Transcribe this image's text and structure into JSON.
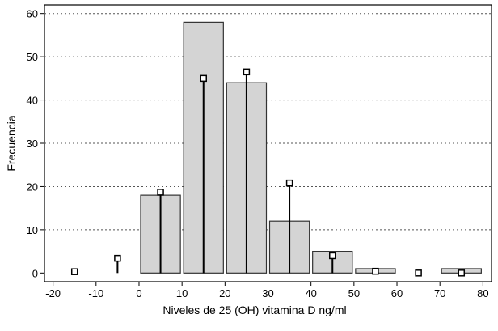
{
  "chart_data": {
    "type": "bar",
    "xlabel": "Niveles de 25 (OH) vitamina D ng/ml",
    "ylabel": "Frecuencia",
    "xlim": [
      -22,
      82
    ],
    "ylim": [
      -2,
      62
    ],
    "x_ticks": [
      -20,
      -10,
      0,
      10,
      20,
      30,
      40,
      50,
      60,
      70,
      80
    ],
    "y_ticks": [
      0,
      10,
      20,
      30,
      40,
      50,
      60
    ],
    "grid": "horizontal dashed",
    "bins": [
      {
        "start": -20,
        "end": -10,
        "value": 0
      },
      {
        "start": -10,
        "end": 0,
        "value": 0
      },
      {
        "start": 0,
        "end": 10,
        "value": 18
      },
      {
        "start": 10,
        "end": 20,
        "value": 58
      },
      {
        "start": 20,
        "end": 30,
        "value": 44
      },
      {
        "start": 30,
        "end": 40,
        "value": 12
      },
      {
        "start": 40,
        "end": 50,
        "value": 5
      },
      {
        "start": 50,
        "end": 60,
        "value": 1
      },
      {
        "start": 60,
        "end": 70,
        "value": 0
      },
      {
        "start": 70,
        "end": 80,
        "value": 1
      }
    ],
    "expected": [
      {
        "x": -15,
        "value": 0.3
      },
      {
        "x": -5,
        "value": 3.4
      },
      {
        "x": 5,
        "value": 18.7
      },
      {
        "x": 15,
        "value": 45
      },
      {
        "x": 25,
        "value": 46.5
      },
      {
        "x": 35,
        "value": 20.8
      },
      {
        "x": 45,
        "value": 4
      },
      {
        "x": 55,
        "value": 0.4
      },
      {
        "x": 65,
        "value": 0
      },
      {
        "x": 75,
        "value": 0
      }
    ],
    "colors": {
      "bar_fill": "#d4d4d4",
      "bar_stroke": "#333333",
      "stem": "#000000",
      "marker_fill": "#ffffff"
    }
  }
}
